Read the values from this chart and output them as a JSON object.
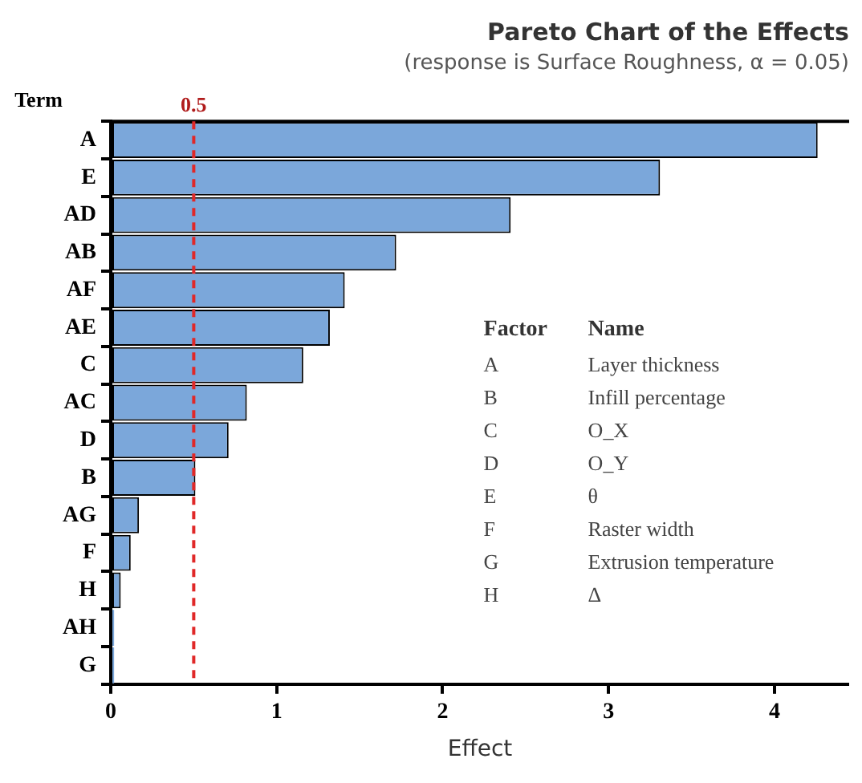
{
  "chart_data": {
    "type": "bar",
    "orientation": "horizontal",
    "title": "Pareto Chart of the Effects",
    "subtitle": "(response is Surface Roughness, α = 0.05)",
    "xlabel": "Effect",
    "ylabel": "Term",
    "categories": [
      "A",
      "E",
      "AD",
      "AB",
      "AF",
      "AE",
      "C",
      "AC",
      "D",
      "B",
      "AG",
      "F",
      "H",
      "AH",
      "G"
    ],
    "values": [
      4.26,
      3.31,
      2.41,
      1.72,
      1.41,
      1.32,
      1.16,
      0.82,
      0.71,
      0.51,
      0.17,
      0.12,
      0.06,
      0.02,
      0.02
    ],
    "color": "#7ba7da",
    "xlim": [
      0,
      4.45
    ],
    "xticks": [
      0,
      1,
      2,
      3,
      4
    ],
    "grid": false,
    "legend": false,
    "ref_lines": [
      {
        "axis": "x",
        "value": 0.5,
        "label": "0.5",
        "color": "#e02828",
        "line_style": "dashed"
      }
    ],
    "annotations": [
      "Factor",
      "Name",
      "A",
      "Layer thickness",
      "B",
      "Infill percentage",
      "C",
      "O_X",
      "D",
      "O_Y",
      "E",
      "θ",
      "F",
      "Raster width",
      "G",
      "Extrusion temperature",
      "H",
      "Δ"
    ]
  }
}
